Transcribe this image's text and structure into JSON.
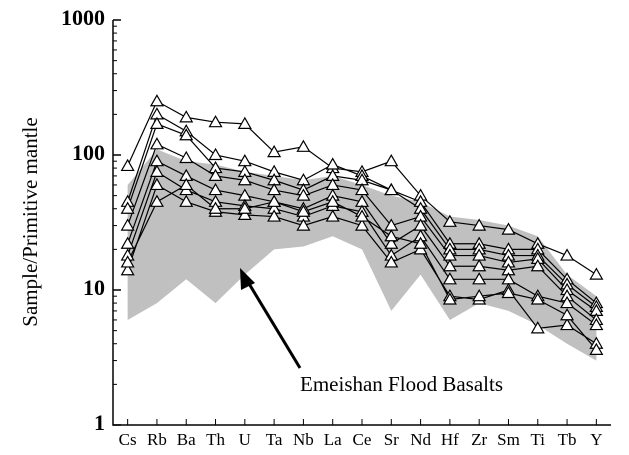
{
  "chart_data": {
    "type": "spider",
    "y_label": "Sample/Primitive mantle",
    "log_scale": true,
    "categories": [
      "Cs",
      "Rb",
      "Ba",
      "Th",
      "U",
      "Ta",
      "Nb",
      "La",
      "Ce",
      "Sr",
      "Nd",
      "Hf",
      "Zr",
      "Sm",
      "Ti",
      "Tb",
      "Y"
    ],
    "ylim": [
      1,
      1000
    ],
    "yticks": [
      1,
      10,
      100,
      1000
    ],
    "color": "#000000",
    "range": {
      "name": "Emeishan Flood Basalts",
      "color": "#c0c0c0",
      "upper": [
        60,
        110,
        90,
        85,
        75,
        70,
        65,
        70,
        60,
        50,
        45,
        35,
        33,
        30,
        25,
        13,
        9
      ],
      "lower": [
        6,
        8,
        12,
        8,
        13,
        20,
        21,
        25,
        20,
        7,
        13,
        6,
        8,
        7,
        5.5,
        4,
        3
      ]
    },
    "samples": [
      {
        "values": [
          83,
          250,
          190,
          175,
          170,
          105,
          115,
          80,
          75,
          90,
          50,
          32,
          30,
          28,
          22,
          18,
          13
        ]
      },
      {
        "values": [
          45,
          200,
          150,
          100,
          90,
          75,
          65,
          85,
          70,
          55,
          45,
          22,
          22,
          20,
          20,
          12,
          8
        ]
      },
      {
        "values": [
          40,
          170,
          140,
          80,
          75,
          65,
          55,
          70,
          65,
          55,
          40,
          20,
          20,
          18,
          18,
          11,
          7.5
        ]
      },
      {
        "values": [
          30,
          120,
          95,
          70,
          65,
          55,
          50,
          60,
          55,
          30,
          35,
          18,
          18,
          16,
          17,
          10,
          7
        ]
      },
      {
        "values": [
          22,
          90,
          70,
          55,
          50,
          45,
          40,
          50,
          45,
          22,
          30,
          15,
          15,
          14,
          15,
          9,
          6
        ]
      },
      {
        "values": [
          18,
          75,
          55,
          45,
          42,
          40,
          35,
          42,
          38,
          18,
          25,
          12,
          12,
          12,
          9,
          8,
          5.5
        ]
      },
      {
        "values": [
          14,
          60,
          45,
          38,
          36,
          35,
          30,
          35,
          30,
          16,
          20,
          9,
          8.5,
          10,
          5.2,
          5.5,
          4
        ]
      },
      {
        "values": [
          16,
          45,
          60,
          40,
          40,
          45,
          38,
          45,
          35,
          25,
          22,
          8.5,
          9,
          9.5,
          8.5,
          6.5,
          3.6
        ]
      }
    ]
  }
}
